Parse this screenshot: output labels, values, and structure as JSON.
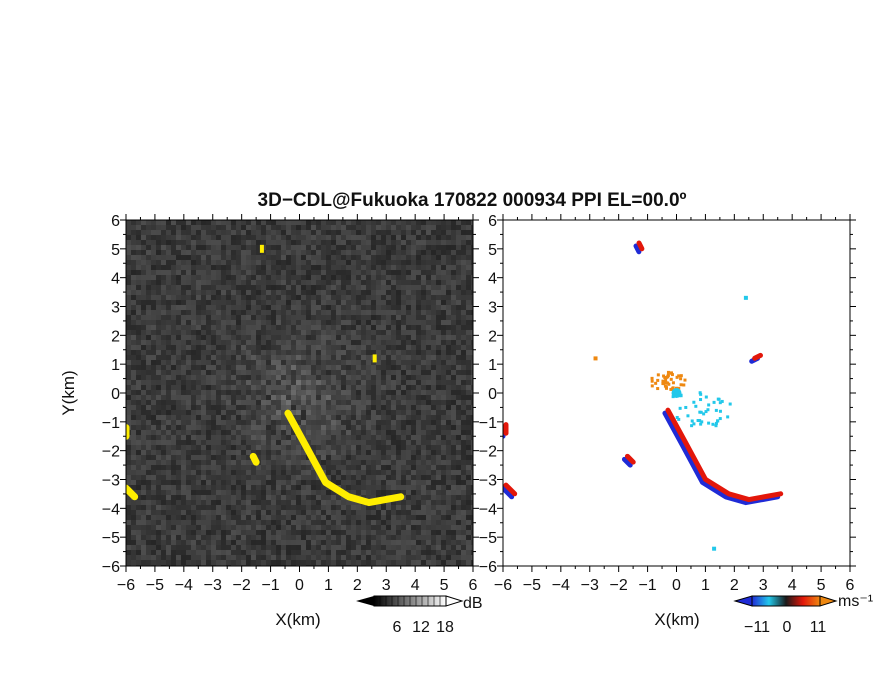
{
  "title": "3D−CDL@Fukuoka 170822 000934 PPI EL=00.0º",
  "colors": {
    "reflectivity_bg": "#2b2b2b",
    "echo_yellow": "#ffee00",
    "radial_blue": "#1f2bd6",
    "radial_red": "#e3170a",
    "radial_cyan": "#22c8ea",
    "radial_orange": "#ee8811"
  },
  "chart_data": [
    {
      "type": "heatmap",
      "panel": "left",
      "xlabel": "X(km)",
      "ylabel": "Y(km)",
      "xlim": [
        -6,
        6
      ],
      "ylim": [
        -6,
        6
      ],
      "xticks": [
        "−6",
        "−5",
        "−4",
        "−3",
        "−2",
        "−1",
        "0",
        "1",
        "2",
        "3",
        "4",
        "5",
        "6"
      ],
      "yticks": [
        "6",
        "5",
        "4",
        "3",
        "2",
        "1",
        "0",
        "−1",
        "−2",
        "−3",
        "−4",
        "−5",
        "−6"
      ],
      "grid": false,
      "colorbar": {
        "ticks": [
          "6",
          "12",
          "18"
        ],
        "unit": "dB"
      },
      "features": [
        {
          "kind": "echo",
          "color": "yellow",
          "points": [
            [
              -0.4,
              -0.7
            ],
            [
              0.2,
              -1.8
            ],
            [
              0.9,
              -3.1
            ],
            [
              1.7,
              -3.6
            ],
            [
              2.4,
              -3.8
            ],
            [
              3.5,
              -3.6
            ]
          ]
        },
        {
          "kind": "echo",
          "color": "yellow",
          "points": [
            [
              -6,
              -1.2
            ],
            [
              -6,
              -1.5
            ]
          ]
        },
        {
          "kind": "echo",
          "color": "yellow",
          "points": [
            [
              -6,
              -3.3
            ],
            [
              -5.7,
              -3.6
            ]
          ]
        },
        {
          "kind": "echo",
          "color": "yellow",
          "points": [
            [
              -1.3,
              5.0
            ]
          ]
        },
        {
          "kind": "echo",
          "color": "yellow",
          "points": [
            [
              2.6,
              1.2
            ]
          ]
        },
        {
          "kind": "echo",
          "color": "yellow",
          "points": [
            [
              -1.6,
              -2.2
            ],
            [
              -1.5,
              -2.4
            ]
          ]
        }
      ]
    },
    {
      "type": "heatmap",
      "panel": "right",
      "xlabel": "X(km)",
      "xlim": [
        -6,
        6
      ],
      "ylim": [
        -6,
        6
      ],
      "xticks": [
        "−6",
        "−5",
        "−4",
        "−3",
        "−2",
        "−1",
        "0",
        "1",
        "2",
        "3",
        "4",
        "5",
        "6"
      ],
      "yticks": [
        "6",
        "5",
        "4",
        "3",
        "2",
        "1",
        "0",
        "−1",
        "−2",
        "−3",
        "−4",
        "−5",
        "−6"
      ],
      "grid": false,
      "colorbar": {
        "ticks": [
          "−11",
          "0",
          "11"
        ],
        "unit": "ms⁻¹"
      },
      "features": [
        {
          "kind": "edge",
          "points": [
            [
              -0.4,
              -0.7
            ],
            [
              0.2,
              -1.8
            ],
            [
              0.9,
              -3.1
            ],
            [
              1.7,
              -3.6
            ],
            [
              2.4,
              -3.8
            ],
            [
              3.5,
              -3.6
            ]
          ]
        },
        {
          "kind": "edge",
          "points": [
            [
              -6,
              -1.2
            ],
            [
              -6,
              -1.5
            ]
          ]
        },
        {
          "kind": "edge",
          "points": [
            [
              -6,
              -3.3
            ],
            [
              -5.7,
              -3.6
            ]
          ]
        },
        {
          "kind": "edge",
          "points": [
            [
              -1.4,
              5.1
            ],
            [
              -1.3,
              4.9
            ]
          ]
        },
        {
          "kind": "edge",
          "points": [
            [
              2.6,
              1.1
            ],
            [
              2.8,
              1.2
            ]
          ]
        },
        {
          "kind": "edge",
          "points": [
            [
              -1.8,
              -2.3
            ],
            [
              -1.6,
              -2.5
            ]
          ]
        },
        {
          "kind": "cluster",
          "color": "orange",
          "center": [
            -0.3,
            0.4
          ],
          "radius": 0.5,
          "count": 45
        },
        {
          "kind": "cluster",
          "color": "cyan",
          "center": [
            0.9,
            -0.6
          ],
          "radius": 0.9,
          "count": 40
        },
        {
          "kind": "cluster",
          "color": "cyan",
          "center": [
            0.0,
            -0.05
          ],
          "radius": 0.15,
          "count": 12
        },
        {
          "kind": "point",
          "color": "orange",
          "x": -2.8,
          "y": 1.2
        },
        {
          "kind": "point",
          "color": "cyan",
          "x": 2.4,
          "y": 3.3
        },
        {
          "kind": "point",
          "color": "cyan",
          "x": 1.3,
          "y": -5.4
        }
      ]
    }
  ]
}
